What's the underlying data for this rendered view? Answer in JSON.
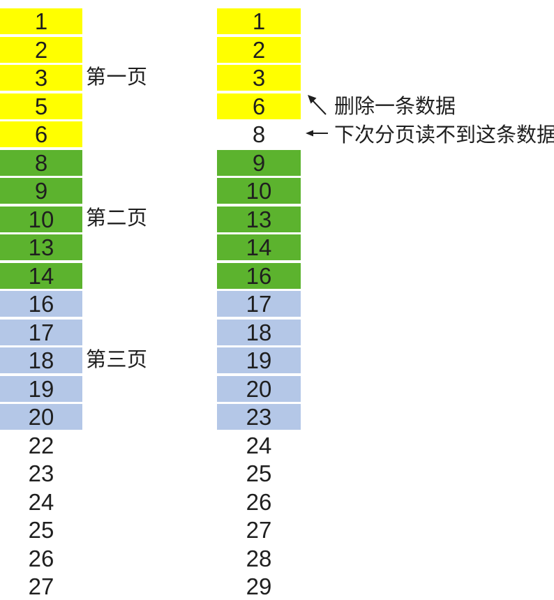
{
  "background": "#ffffff",
  "colors": {
    "page1": "#ffff00",
    "page2": "#5cb32e",
    "page3": "#b4c7e7",
    "text": "#1f1f1f"
  },
  "columns": {
    "before_delete": {
      "rows": [
        {
          "value": "1",
          "page": "page1"
        },
        {
          "value": "2",
          "page": "page1"
        },
        {
          "value": "3",
          "page": "page1"
        },
        {
          "value": "5",
          "page": "page1"
        },
        {
          "value": "6",
          "page": "page1"
        },
        {
          "value": "8",
          "page": "page2"
        },
        {
          "value": "9",
          "page": "page2"
        },
        {
          "value": "10",
          "page": "page2"
        },
        {
          "value": "13",
          "page": "page2"
        },
        {
          "value": "14",
          "page": "page2"
        },
        {
          "value": "16",
          "page": "page3"
        },
        {
          "value": "17",
          "page": "page3"
        },
        {
          "value": "18",
          "page": "page3"
        },
        {
          "value": "19",
          "page": "page3"
        },
        {
          "value": "20",
          "page": "page3"
        },
        {
          "value": "22",
          "page": "none"
        },
        {
          "value": "23",
          "page": "none"
        },
        {
          "value": "24",
          "page": "none"
        },
        {
          "value": "25",
          "page": "none"
        },
        {
          "value": "26",
          "page": "none"
        },
        {
          "value": "27",
          "page": "none"
        }
      ]
    },
    "after_delete": {
      "rows": [
        {
          "value": "1",
          "page": "page1"
        },
        {
          "value": "2",
          "page": "page1"
        },
        {
          "value": "3",
          "page": "page1"
        },
        {
          "value": "6",
          "page": "page1"
        },
        {
          "value": "8",
          "page": "none"
        },
        {
          "value": "9",
          "page": "page2"
        },
        {
          "value": "10",
          "page": "page2"
        },
        {
          "value": "13",
          "page": "page2"
        },
        {
          "value": "14",
          "page": "page2"
        },
        {
          "value": "16",
          "page": "page2"
        },
        {
          "value": "17",
          "page": "page3"
        },
        {
          "value": "18",
          "page": "page3"
        },
        {
          "value": "19",
          "page": "page3"
        },
        {
          "value": "20",
          "page": "page3"
        },
        {
          "value": "23",
          "page": "page3"
        },
        {
          "value": "24",
          "page": "none"
        },
        {
          "value": "25",
          "page": "none"
        },
        {
          "value": "26",
          "page": "none"
        },
        {
          "value": "27",
          "page": "none"
        },
        {
          "value": "28",
          "page": "none"
        },
        {
          "value": "29",
          "page": "none"
        }
      ]
    }
  },
  "page_labels": [
    {
      "text": "第一页",
      "row_index": 2
    },
    {
      "text": "第二页",
      "row_index": 7
    },
    {
      "text": "第三页",
      "row_index": 12
    }
  ],
  "annotations": [
    {
      "icon": "up-left-arrow-icon",
      "text": "删除一条数据",
      "row_index": 3
    },
    {
      "icon": "left-arrow-icon",
      "text": "下次分页读不到这条数据",
      "row_index": 4
    }
  ]
}
